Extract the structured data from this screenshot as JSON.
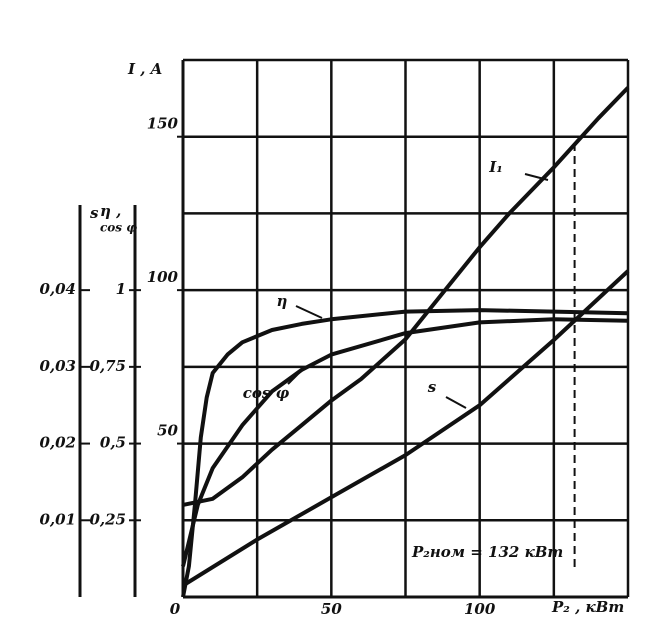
{
  "chart_data": {
    "type": "line",
    "y_label": "I , A",
    "x_label": "P₂ , кВт",
    "y2_label": [
      "η ,",
      "cos φ"
    ],
    "y3_label": "s",
    "xlim": [
      0,
      150
    ],
    "xticks": [
      0,
      50,
      100
    ],
    "xgrid": [
      25,
      50,
      75,
      100,
      125,
      150
    ],
    "ylim": [
      0,
      175
    ],
    "yticks": [
      50,
      100,
      150
    ],
    "ygrid": [
      25,
      50,
      75,
      100,
      125,
      150,
      175
    ],
    "y2lim": [
      0,
      1.75
    ],
    "y2ticks": [
      {
        "value": 0.25,
        "label": "0,25"
      },
      {
        "value": 0.5,
        "label": "0,5"
      },
      {
        "value": 0.75,
        "label": "0,75"
      },
      1
    ],
    "y3lim": [
      0,
      0.07
    ],
    "y3ticks": [
      {
        "value": 0.01,
        "label": "0,01"
      },
      {
        "value": 0.02,
        "label": "0,02"
      },
      {
        "value": 0.03,
        "label": "0,03"
      },
      {
        "value": 0.04,
        "label": "0,04"
      }
    ],
    "grid": true,
    "nominal": {
      "x": 132,
      "y": 150,
      "label": "P₂ном = 132 кВт"
    },
    "series": [
      {
        "name": "I₁",
        "color": "#111111",
        "axis": "y",
        "x": [
          0,
          10,
          20,
          30,
          40,
          50,
          60,
          75,
          90,
          100,
          110,
          125,
          140,
          150
        ],
        "values": [
          30,
          32,
          39,
          48,
          56,
          64,
          71,
          84,
          102,
          114,
          125,
          140,
          156,
          166
        ]
      },
      {
        "name": "η",
        "color": "#111111",
        "axis": "y2",
        "x": [
          0,
          2,
          4,
          6,
          8,
          10,
          15,
          20,
          30,
          40,
          50,
          75,
          100,
          125,
          150
        ],
        "values": [
          0,
          0.1,
          0.3,
          0.52,
          0.65,
          0.73,
          0.79,
          0.83,
          0.87,
          0.89,
          0.905,
          0.93,
          0.935,
          0.93,
          0.925
        ]
      },
      {
        "name": "cos φ",
        "color": "#111111",
        "axis": "y2",
        "x": [
          0,
          5,
          10,
          20,
          30,
          40,
          50,
          75,
          100,
          125,
          150
        ],
        "values": [
          0.1,
          0.3,
          0.42,
          0.56,
          0.67,
          0.74,
          0.79,
          0.86,
          0.895,
          0.905,
          0.9
        ]
      },
      {
        "name": "s",
        "color": "#111111",
        "axis": "y3",
        "x": [
          0,
          25,
          50,
          75,
          100,
          125,
          150
        ],
        "values": [
          0.0015,
          0.0075,
          0.013,
          0.0185,
          0.025,
          0.0335,
          0.0425
        ]
      }
    ]
  }
}
